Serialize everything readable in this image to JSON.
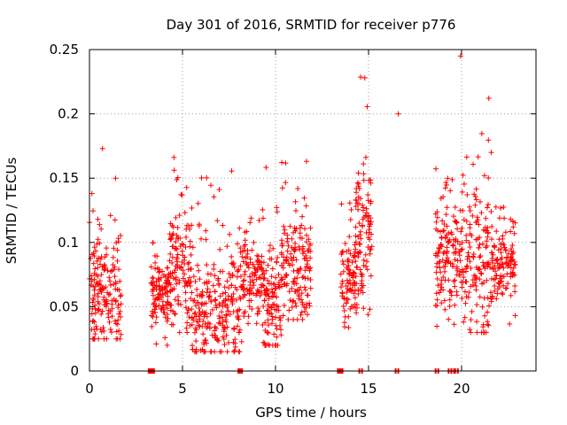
{
  "chart_data": {
    "type": "scatter",
    "title": "Day 301 of 2016, SRMTID for receiver p776",
    "xlabel": "GPS time / hours",
    "ylabel": "SRMTID / TECUs",
    "xlim": [
      0,
      24
    ],
    "ylim": [
      0,
      0.25
    ],
    "x_ticks": [
      0,
      5,
      10,
      15,
      20
    ],
    "x_tick_labels": [
      "0",
      "5",
      "10",
      "15",
      "20"
    ],
    "y_ticks": [
      0,
      0.05,
      0.1,
      0.15,
      0.2,
      0.25
    ],
    "y_tick_labels": [
      "0",
      "0.05",
      "0.1",
      "0.15",
      "0.2",
      "0.25"
    ],
    "grid": true,
    "marker": "+",
    "series_color": "#ff0000",
    "clusters": [
      {
        "x_start": 0.0,
        "x_end": 1.7,
        "y_min": 0.025,
        "y_max": 0.17,
        "y_center": 0.065,
        "count": 170
      },
      {
        "x_start": 3.3,
        "x_end": 4.3,
        "y_min": 0.02,
        "y_max": 0.1,
        "y_center": 0.06,
        "count": 110
      },
      {
        "x_start": 4.3,
        "x_end": 5.5,
        "y_min": 0.03,
        "y_max": 0.17,
        "y_center": 0.08,
        "count": 130
      },
      {
        "x_start": 5.5,
        "x_end": 8.1,
        "y_min": 0.015,
        "y_max": 0.16,
        "y_center": 0.05,
        "count": 240
      },
      {
        "x_start": 8.1,
        "x_end": 9.3,
        "y_min": 0.02,
        "y_max": 0.14,
        "y_center": 0.07,
        "count": 110
      },
      {
        "x_start": 9.3,
        "x_end": 10.3,
        "y_min": 0.02,
        "y_max": 0.16,
        "y_center": 0.05,
        "count": 110
      },
      {
        "x_start": 10.3,
        "x_end": 11.9,
        "y_min": 0.04,
        "y_max": 0.165,
        "y_center": 0.08,
        "count": 160
      },
      {
        "x_start": 13.5,
        "x_end": 14.4,
        "y_min": 0.03,
        "y_max": 0.14,
        "y_center": 0.07,
        "count": 90
      },
      {
        "x_start": 14.3,
        "x_end": 15.2,
        "y_min": 0.04,
        "y_max": 0.23,
        "y_center": 0.11,
        "count": 100
      },
      {
        "x_start": 18.6,
        "x_end": 20.0,
        "y_min": 0.03,
        "y_max": 0.165,
        "y_center": 0.09,
        "count": 140
      },
      {
        "x_start": 20.0,
        "x_end": 21.6,
        "y_min": 0.03,
        "y_max": 0.245,
        "y_center": 0.09,
        "count": 150
      },
      {
        "x_start": 21.6,
        "x_end": 22.9,
        "y_min": 0.035,
        "y_max": 0.13,
        "y_center": 0.085,
        "count": 120
      }
    ],
    "outliers": [
      {
        "x": 16.6,
        "y": 0.2
      },
      {
        "x": 14.8,
        "y": 0.228
      },
      {
        "x": 19.95,
        "y": 0.245
      },
      {
        "x": 0.7,
        "y": 0.173
      }
    ],
    "zero_markers": [
      3.28,
      3.35,
      3.42,
      8.1,
      8.15,
      13.45,
      13.55,
      14.6,
      16.55,
      18.7,
      19.4,
      19.55,
      19.75
    ]
  }
}
